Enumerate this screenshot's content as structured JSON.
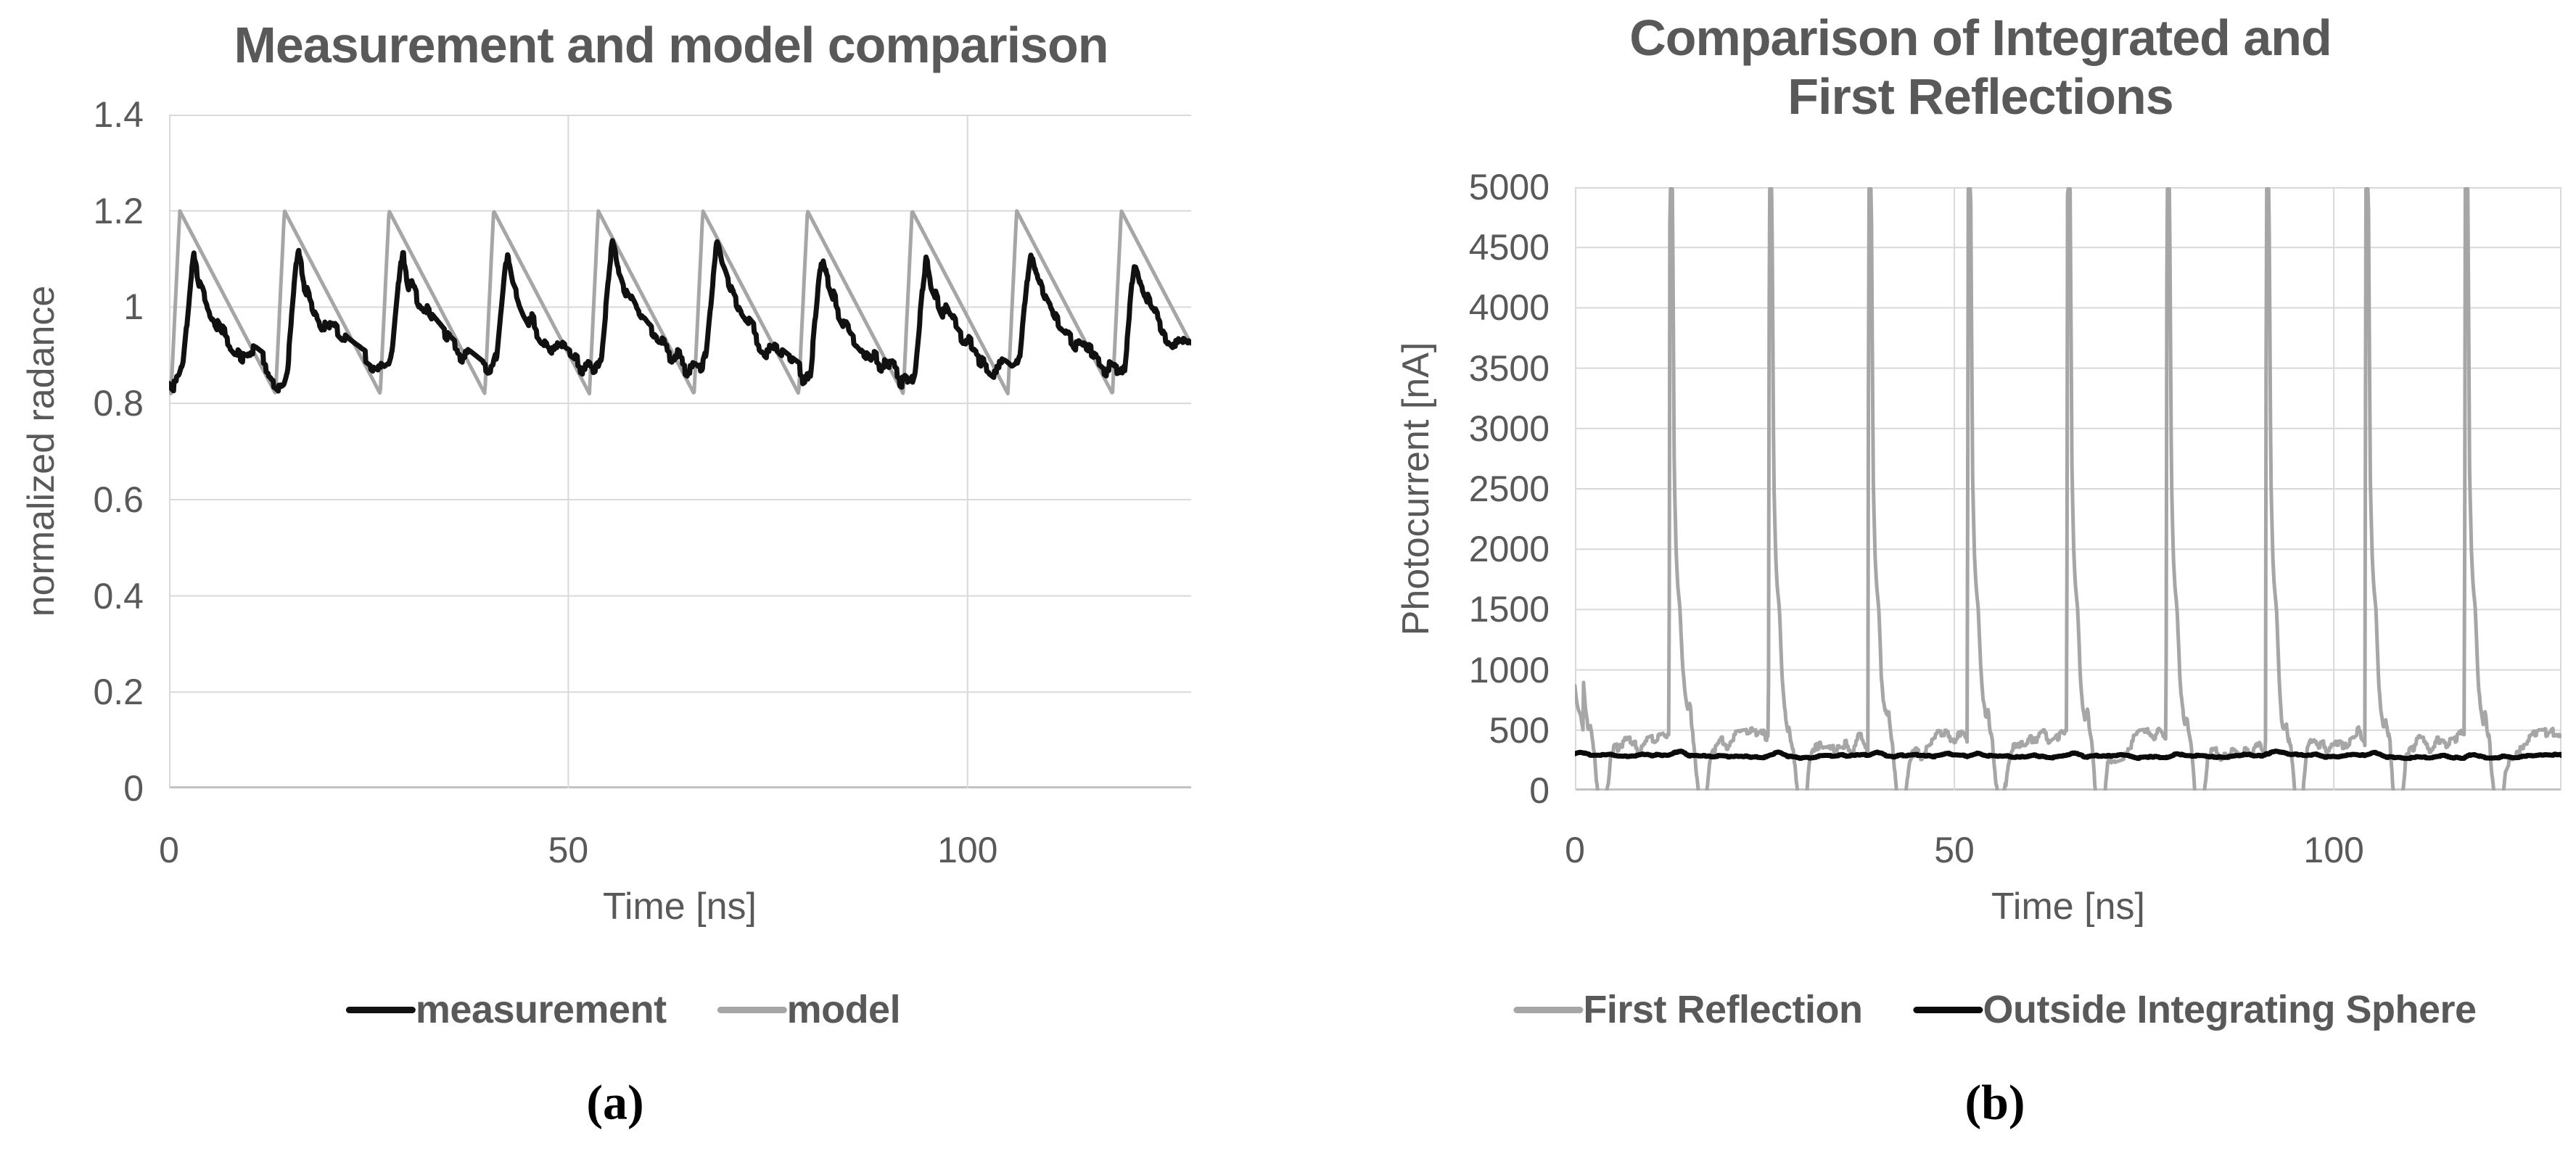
{
  "colors": {
    "text_gray": "#595959",
    "grid": "#d9d9d9",
    "axis": "#c2c2c2",
    "series_gray": "#a6a6a6",
    "series_black": "#111111",
    "background": "#ffffff",
    "caption": "#000000"
  },
  "chart_data": [
    {
      "type": "line",
      "title_lines": [
        "Measurement and model comparison"
      ],
      "xlabel": "Time [ns]",
      "ylabel": "normalized radance",
      "xlim": [
        0,
        128
      ],
      "ylim": [
        0,
        1.4
      ],
      "grid": true,
      "legend_position": "bottom",
      "caption": "(a)",
      "x_ticks": {
        "values": [
          0,
          50,
          100
        ],
        "labels": [
          "0",
          "50",
          "100"
        ]
      },
      "y_ticks": {
        "values": [
          0,
          0.2,
          0.4,
          0.6,
          0.8,
          1.0,
          1.2,
          1.4
        ],
        "labels": [
          "0",
          "0.2",
          "0.4",
          "0.6",
          "0.8",
          "1",
          "1.2",
          "1.4"
        ]
      },
      "series": [
        {
          "name": "measurement",
          "color": "#111111",
          "width": 7,
          "z": 2,
          "description": "noisy measured waveform, period 13.1 ns, peaks ~1.12 about 1.8 ns after model peak, decays to ~0.85",
          "waveform": {
            "kind": "anchors",
            "period": 13.1,
            "epoch": 0.25,
            "anchors": [
              [
                0.0,
                0.858
              ],
              [
                0.5,
                0.85
              ],
              [
                1.0,
                0.856
              ],
              [
                1.5,
                0.885
              ],
              [
                2.0,
                0.975
              ],
              [
                2.5,
                1.065
              ],
              [
                2.85,
                1.112
              ],
              [
                3.1,
                1.1
              ],
              [
                3.5,
                1.065
              ],
              [
                3.9,
                1.05
              ],
              [
                4.3,
                1.03
              ],
              [
                4.8,
                1.01
              ],
              [
                5.3,
                0.995
              ],
              [
                5.9,
                0.975
              ],
              [
                6.5,
                0.958
              ],
              [
                7.2,
                0.944
              ],
              [
                7.9,
                0.93
              ],
              [
                8.6,
                0.917
              ],
              [
                9.3,
                0.906
              ],
              [
                10.0,
                0.897
              ],
              [
                10.7,
                0.889
              ],
              [
                11.4,
                0.88
              ],
              [
                12.0,
                0.872
              ],
              [
                12.6,
                0.864
              ],
              [
                13.1,
                0.858
              ]
            ]
          },
          "noise": {
            "step": 0.02,
            "damp": 0.9,
            "clamp": 0.027,
            "hold": 4,
            "seed": 7
          }
        },
        {
          "name": "model",
          "color": "#a6a6a6",
          "width": 5,
          "z": 1,
          "description": "sawtooth model: fast rise 0.82->1.2 in ~1.1 ns, linear decay back to 0.82, period 13.1 ns, first peak t=1.35 ns",
          "waveform": {
            "kind": "sawtooth",
            "period": 13.1,
            "epoch": 0.25,
            "rise": 1.1,
            "min": 0.82,
            "max": 1.2
          }
        }
      ]
    },
    {
      "type": "line",
      "title_lines": [
        "Comparison of Integrated and",
        "First Reflections"
      ],
      "xlabel": "Time [ns]",
      "ylabel": "Photocurrent [nA]",
      "xlim": [
        0,
        130
      ],
      "ylim": [
        0,
        5000
      ],
      "grid": true,
      "legend_position": "bottom",
      "caption": "(b)",
      "x_ticks": {
        "values": [
          0,
          50,
          100
        ],
        "labels": [
          "0",
          "50",
          "100"
        ]
      },
      "y_ticks": {
        "values": [
          0,
          500,
          1000,
          1500,
          2000,
          2500,
          3000,
          3500,
          4000,
          4500,
          5000
        ],
        "labels": [
          "0",
          "500",
          "1000",
          "1500",
          "2000",
          "2500",
          "3000",
          "3500",
          "4000",
          "4500",
          "5000"
        ]
      },
      "series": [
        {
          "name": "First Reflection",
          "color": "#a6a6a6",
          "width": 5,
          "z": 1,
          "description": "spike train clipped at 5000 nA, spikes every 13.1 ns starting t=12.4; after each spike decays through ~1800 shoulder and ~600 hump, dips below 0 (clipped), noisy ~300-450 baseline",
          "waveform": {
            "kind": "anchors",
            "period": 13.1,
            "epoch": 12.4,
            "anchors": [
              [
                0,
                420
              ],
              [
                0.12,
                4985
              ],
              [
                0.45,
                4985
              ],
              [
                0.7,
                2600
              ],
              [
                0.95,
                1950
              ],
              [
                1.15,
                1700
              ],
              [
                1.45,
                1500
              ],
              [
                1.8,
                950
              ],
              [
                2.1,
                700
              ],
              [
                2.45,
                560
              ],
              [
                2.75,
                620
              ],
              [
                3.0,
                480
              ],
              [
                3.3,
                380
              ],
              [
                3.7,
                60
              ],
              [
                4.1,
                -180
              ],
              [
                4.7,
                -120
              ],
              [
                5.1,
                60
              ],
              [
                5.4,
                260
              ],
              [
                5.9,
                330
              ],
              [
                6.6,
                350
              ],
              [
                7.6,
                370
              ],
              [
                8.6,
                380
              ],
              [
                9.6,
                390
              ],
              [
                10.6,
                400
              ],
              [
                11.6,
                430
              ],
              [
                12.3,
                470
              ],
              [
                12.7,
                430
              ],
              [
                13.1,
                420
              ]
            ],
            "pre_epoch_scale": {
              "below_phase": 1.8,
              "scale": 0.22,
              "base": 380
            }
          },
          "noise": {
            "step": 0.055,
            "damp": 0.85,
            "clamp": 0.11,
            "hold": 3,
            "seed": 3,
            "scale": 1000,
            "gate_after_phase": 1.55,
            "gate_width": 0.4
          }
        },
        {
          "name": "Outside Integrating Sphere",
          "color": "#0a0a0a",
          "width": 7,
          "z": 2,
          "description": "nearly flat line ~290 nA with small bumps (~+26 nA) shortly after each spike",
          "waveform": {
            "kind": "flat_bump",
            "period": 13.1,
            "epoch": 12.4,
            "base": 288,
            "bump_amp": 26,
            "bump_center_phase": 1.3,
            "bump_sigma": 0.9,
            "wander_amp": 6,
            "wander_period": 41
          },
          "noise": {
            "step": 0.008,
            "damp": 0.9,
            "clamp": 0.016,
            "hold": 4,
            "seed": 11,
            "scale": 1000
          }
        }
      ]
    }
  ]
}
